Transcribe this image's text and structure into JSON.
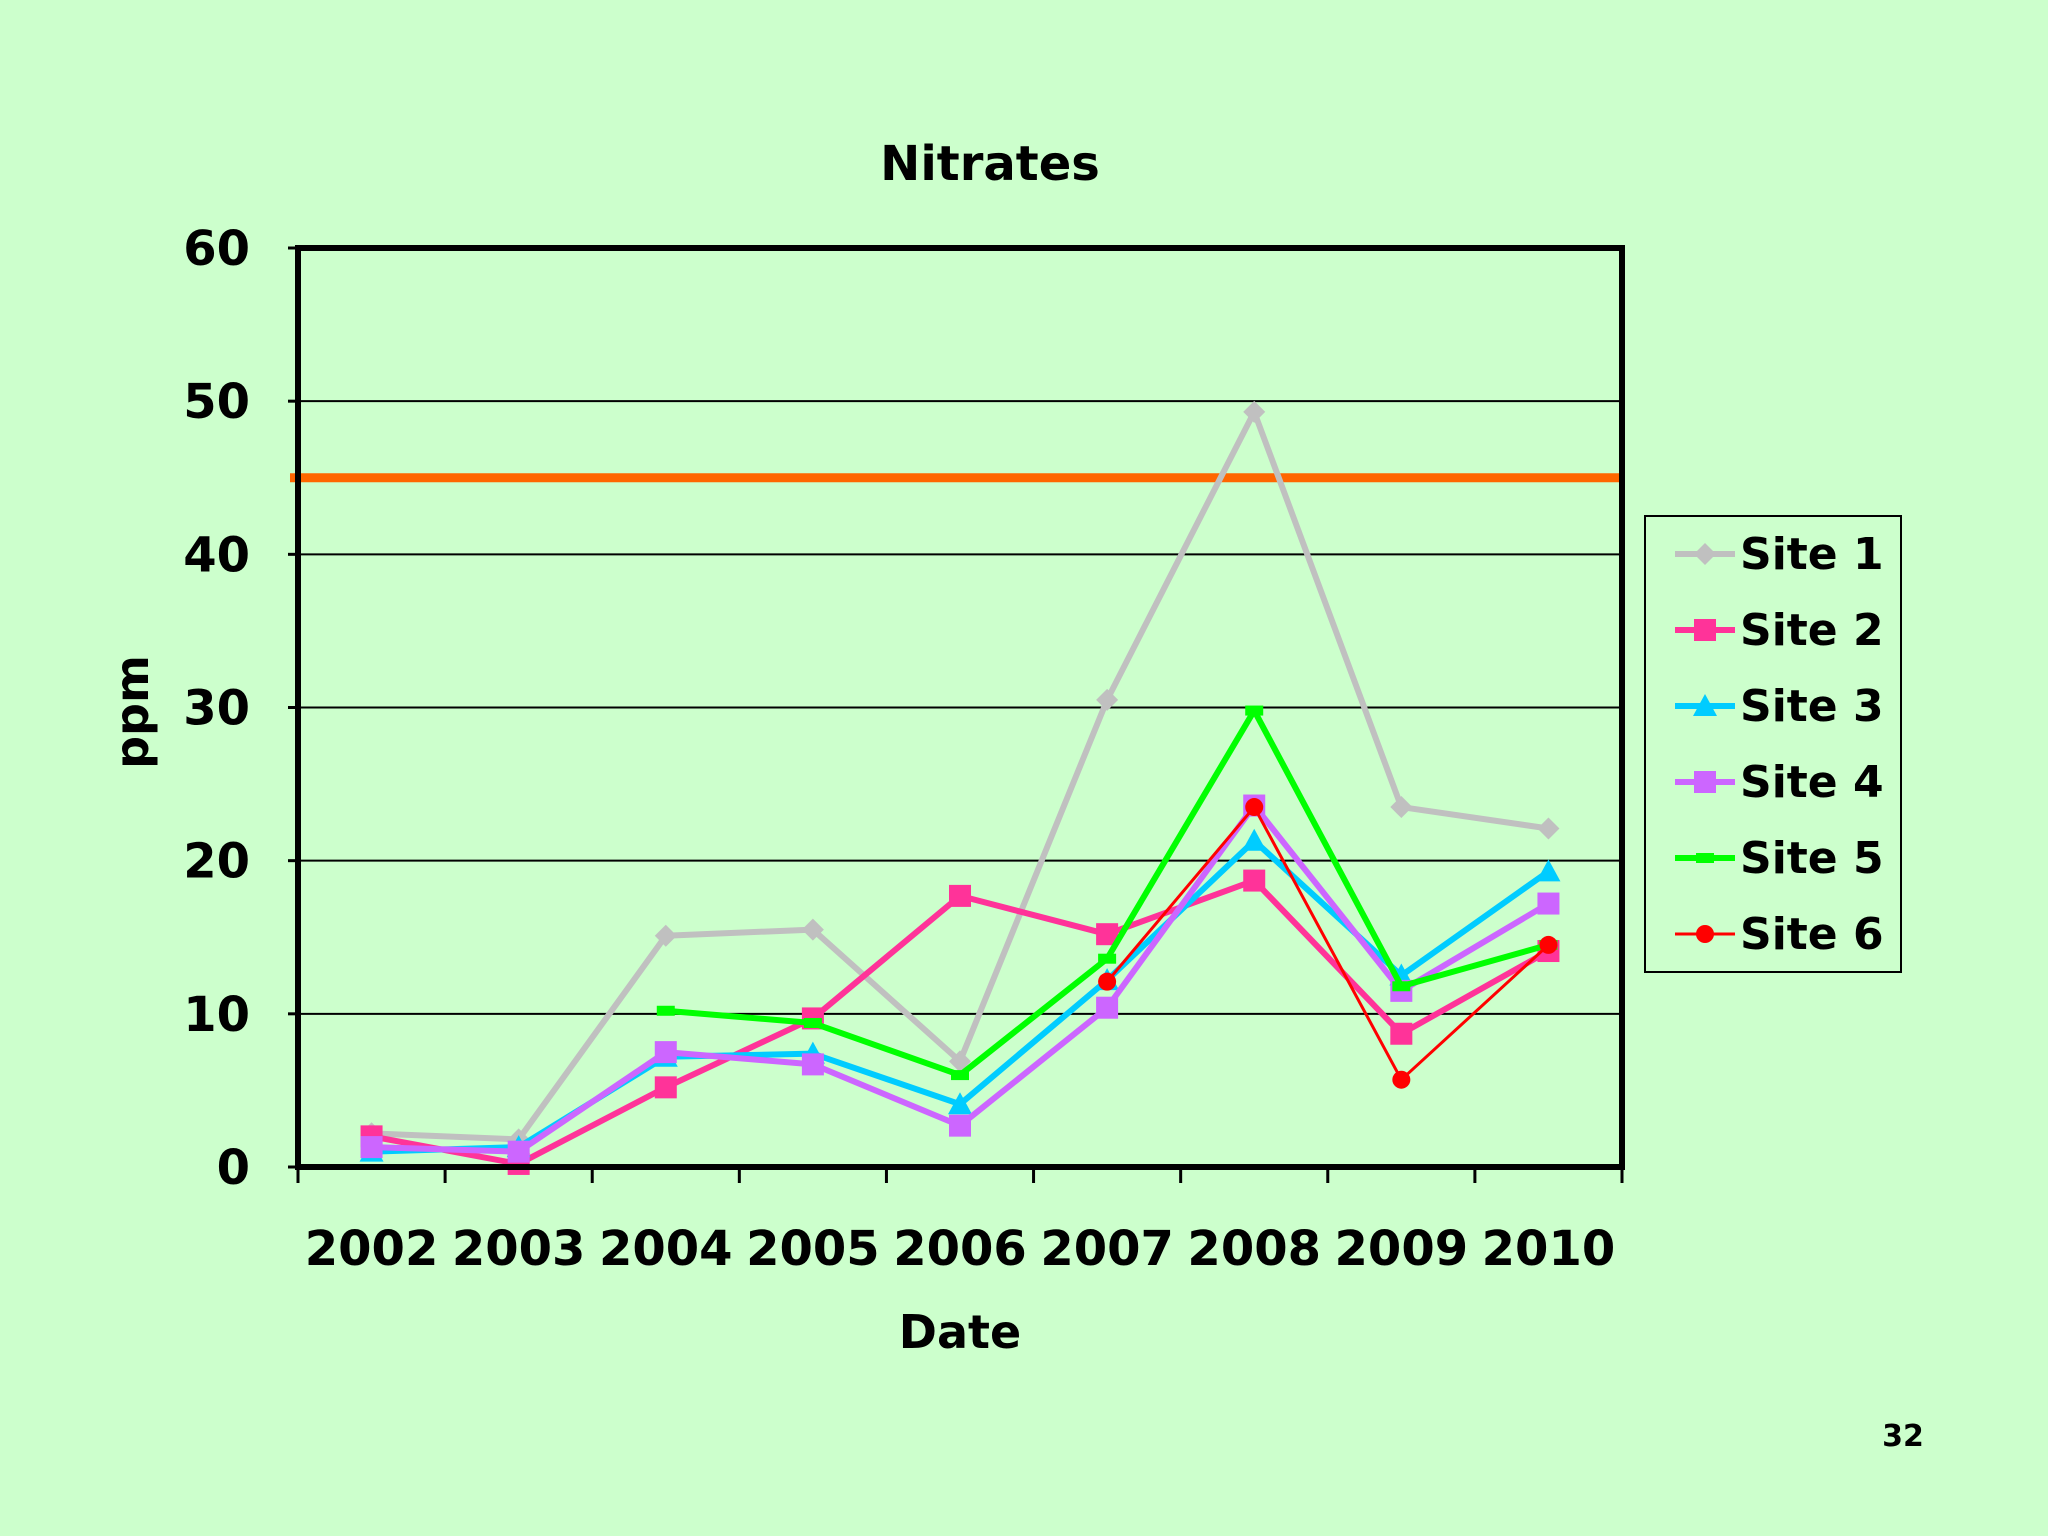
{
  "slide": {
    "page_number": "32"
  },
  "chart_data": {
    "type": "line",
    "title": "Nitrates",
    "xlabel": "Date",
    "ylabel": "ppm",
    "categories": [
      "2002",
      "2003",
      "2004",
      "2005",
      "2006",
      "2007",
      "2008",
      "2009",
      "2010"
    ],
    "ylim": [
      0,
      60
    ],
    "yticks": [
      0,
      10,
      20,
      30,
      40,
      50,
      60
    ],
    "grid": true,
    "legend": "right",
    "reference_line": {
      "value": 45,
      "color": "#ff6600"
    },
    "series": [
      {
        "name": "Site 1",
        "color": "#c0c0c0",
        "marker": "diamond",
        "width": 6,
        "values": [
          2.2,
          1.8,
          15.1,
          15.5,
          6.9,
          30.5,
          49.3,
          23.5,
          22.1
        ]
      },
      {
        "name": "Site 2",
        "color": "#ff3399",
        "marker": "square",
        "width": 6,
        "values": [
          2.0,
          0.2,
          5.2,
          9.7,
          17.7,
          15.2,
          18.7,
          8.7,
          14.1
        ]
      },
      {
        "name": "Site 3",
        "color": "#00ccff",
        "marker": "triangle",
        "width": 6,
        "values": [
          1.0,
          1.3,
          7.2,
          7.4,
          4.1,
          12.2,
          21.3,
          12.5,
          19.3
        ]
      },
      {
        "name": "Site 4",
        "color": "#cc66ff",
        "marker": "square",
        "width": 6,
        "values": [
          1.3,
          1.0,
          7.5,
          6.7,
          2.7,
          10.4,
          23.6,
          11.5,
          17.2
        ]
      },
      {
        "name": "Site 5",
        "color": "#00ff00",
        "marker": "dash",
        "width": 6,
        "values": [
          null,
          null,
          10.2,
          9.4,
          6.0,
          13.6,
          29.8,
          11.8,
          14.5
        ]
      },
      {
        "name": "Site 6",
        "color": "#ff0000",
        "marker": "circle",
        "width": 3,
        "values": [
          null,
          null,
          null,
          null,
          null,
          12.1,
          23.5,
          5.7,
          14.5
        ]
      }
    ]
  }
}
